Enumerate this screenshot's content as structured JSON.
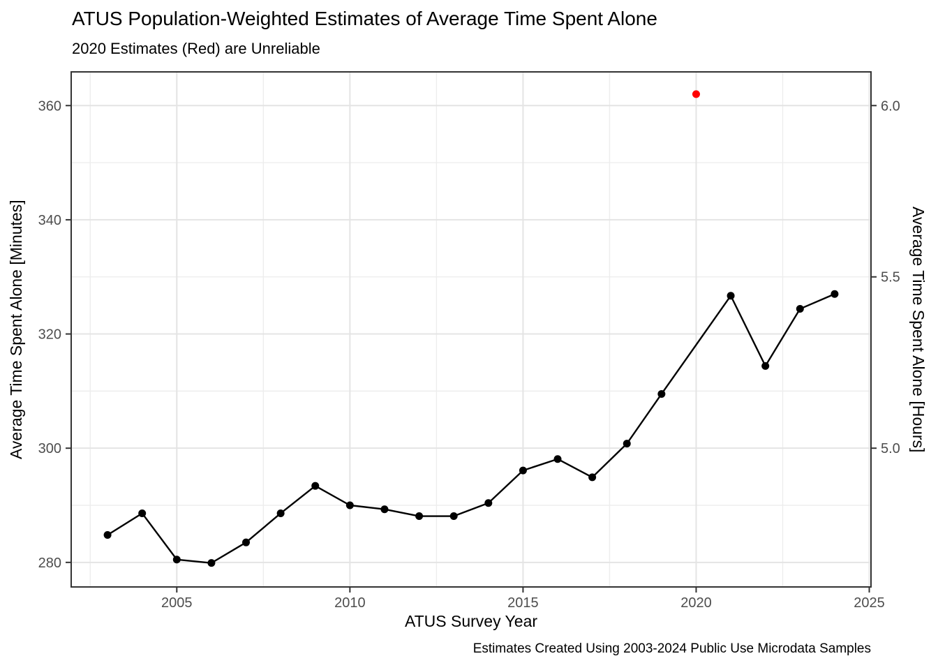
{
  "page": {
    "background": "#FFFFFF"
  },
  "colors": {
    "reliable_series": "#000000",
    "unreliable_point": "#FF0000",
    "grid_major": "#E4E4E4",
    "grid_minor": "#EDEDED",
    "panel_border": "#333333",
    "tick_mark": "#333333",
    "tick_label": "#4D4D4D",
    "text": "#000000"
  },
  "chart_data": {
    "type": "line",
    "title": "ATUS Population-Weighted Estimates of Average Time Spent Alone",
    "subtitle": "2020 Estimates (Red) are Unreliable",
    "caption": "Estimates Created Using 2003-2024 Public Use Microdata Samples",
    "xlabel": "ATUS Survey Year",
    "ylabel_left": "Average Time Spent Alone [Minutes]",
    "ylabel_right": "Average Time Spent Alone [Hours]",
    "xlim": [
      2001.95,
      2025.05
    ],
    "ylim_minutes": [
      275.7,
      365.9
    ],
    "grid": true,
    "legend": "none",
    "x_ticks": [
      2005,
      2010,
      2015,
      2020,
      2025
    ],
    "x_tick_labels": [
      "2005",
      "2010",
      "2015",
      "2020",
      "2025"
    ],
    "x_minor_breaks": [
      2002.5,
      2007.5,
      2012.5,
      2017.5,
      2022.5
    ],
    "y_ticks_minutes": [
      280,
      300,
      320,
      340,
      360
    ],
    "y_tick_labels_minutes": [
      "280",
      "300",
      "320",
      "340",
      "360"
    ],
    "y_minor_breaks_minutes": [
      290,
      310,
      330,
      350
    ],
    "y_ticks_hours": [
      5.0,
      5.5,
      6.0
    ],
    "y_tick_labels_hours": [
      "5.0",
      "5.5",
      "6.0"
    ],
    "series": [
      {
        "name": "Reliable estimates (black line with points)",
        "color": "#000000",
        "draw_line": true,
        "points": [
          {
            "year": 2003,
            "minutes": 284.8
          },
          {
            "year": 2004,
            "minutes": 288.6
          },
          {
            "year": 2005,
            "minutes": 280.5
          },
          {
            "year": 2006,
            "minutes": 279.9
          },
          {
            "year": 2007,
            "minutes": 283.5
          },
          {
            "year": 2008,
            "minutes": 288.6
          },
          {
            "year": 2009,
            "minutes": 293.4
          },
          {
            "year": 2010,
            "minutes": 290.0
          },
          {
            "year": 2011,
            "minutes": 289.3
          },
          {
            "year": 2012,
            "minutes": 288.1
          },
          {
            "year": 2013,
            "minutes": 288.1
          },
          {
            "year": 2014,
            "minutes": 290.4
          },
          {
            "year": 2015,
            "minutes": 296.1
          },
          {
            "year": 2016,
            "minutes": 298.1
          },
          {
            "year": 2017,
            "minutes": 294.9
          },
          {
            "year": 2018,
            "minutes": 300.8
          },
          {
            "year": 2019,
            "minutes": 309.5
          },
          {
            "year": 2021,
            "minutes": 326.7
          },
          {
            "year": 2022,
            "minutes": 314.4
          },
          {
            "year": 2023,
            "minutes": 324.4
          },
          {
            "year": 2024,
            "minutes": 327.0
          }
        ]
      },
      {
        "name": "2020 estimate (unreliable, red point)",
        "color": "#FF0000",
        "draw_line": false,
        "points": [
          {
            "year": 2020,
            "minutes": 362.0
          }
        ]
      }
    ]
  }
}
